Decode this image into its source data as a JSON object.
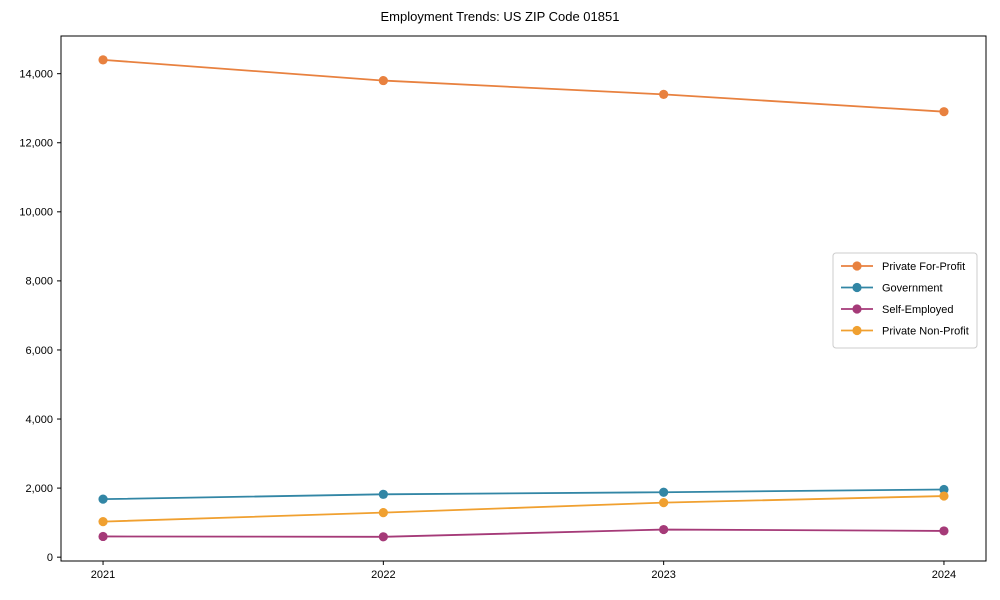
{
  "chart_data": {
    "type": "line",
    "title": "Employment Trends: US ZIP Code 01851",
    "x": [
      2021,
      2022,
      2023,
      2024
    ],
    "xtick_labels": [
      "2021",
      "2022",
      "2023",
      "2024"
    ],
    "series": [
      {
        "name": "Private For-Profit",
        "color": "#E8813F",
        "values": [
          14400,
          13800,
          13400,
          12900
        ]
      },
      {
        "name": "Government",
        "color": "#3286A5",
        "values": [
          1680,
          1820,
          1880,
          1960
        ]
      },
      {
        "name": "Self-Employed",
        "color": "#A53A78",
        "values": [
          600,
          590,
          800,
          760
        ]
      },
      {
        "name": "Private Non-Profit",
        "color": "#F0A030",
        "values": [
          1030,
          1290,
          1580,
          1770
        ]
      }
    ],
    "xlabel": "",
    "ylabel": "",
    "xlim": [
      2020.85,
      2024.15
    ],
    "ylim": [
      -111,
      15091
    ],
    "yticks": [
      0,
      2000,
      4000,
      6000,
      8000,
      10000,
      12000,
      14000
    ],
    "ytick_labels": [
      "0",
      "2,000",
      "4,000",
      "6,000",
      "8,000",
      "10,000",
      "12,000",
      "14,000"
    ],
    "grid": false,
    "legend_position": "right",
    "marker": "o",
    "axis_color": "#000000",
    "legend_border_color": "#cccccc",
    "background_color": "#ffffff"
  }
}
